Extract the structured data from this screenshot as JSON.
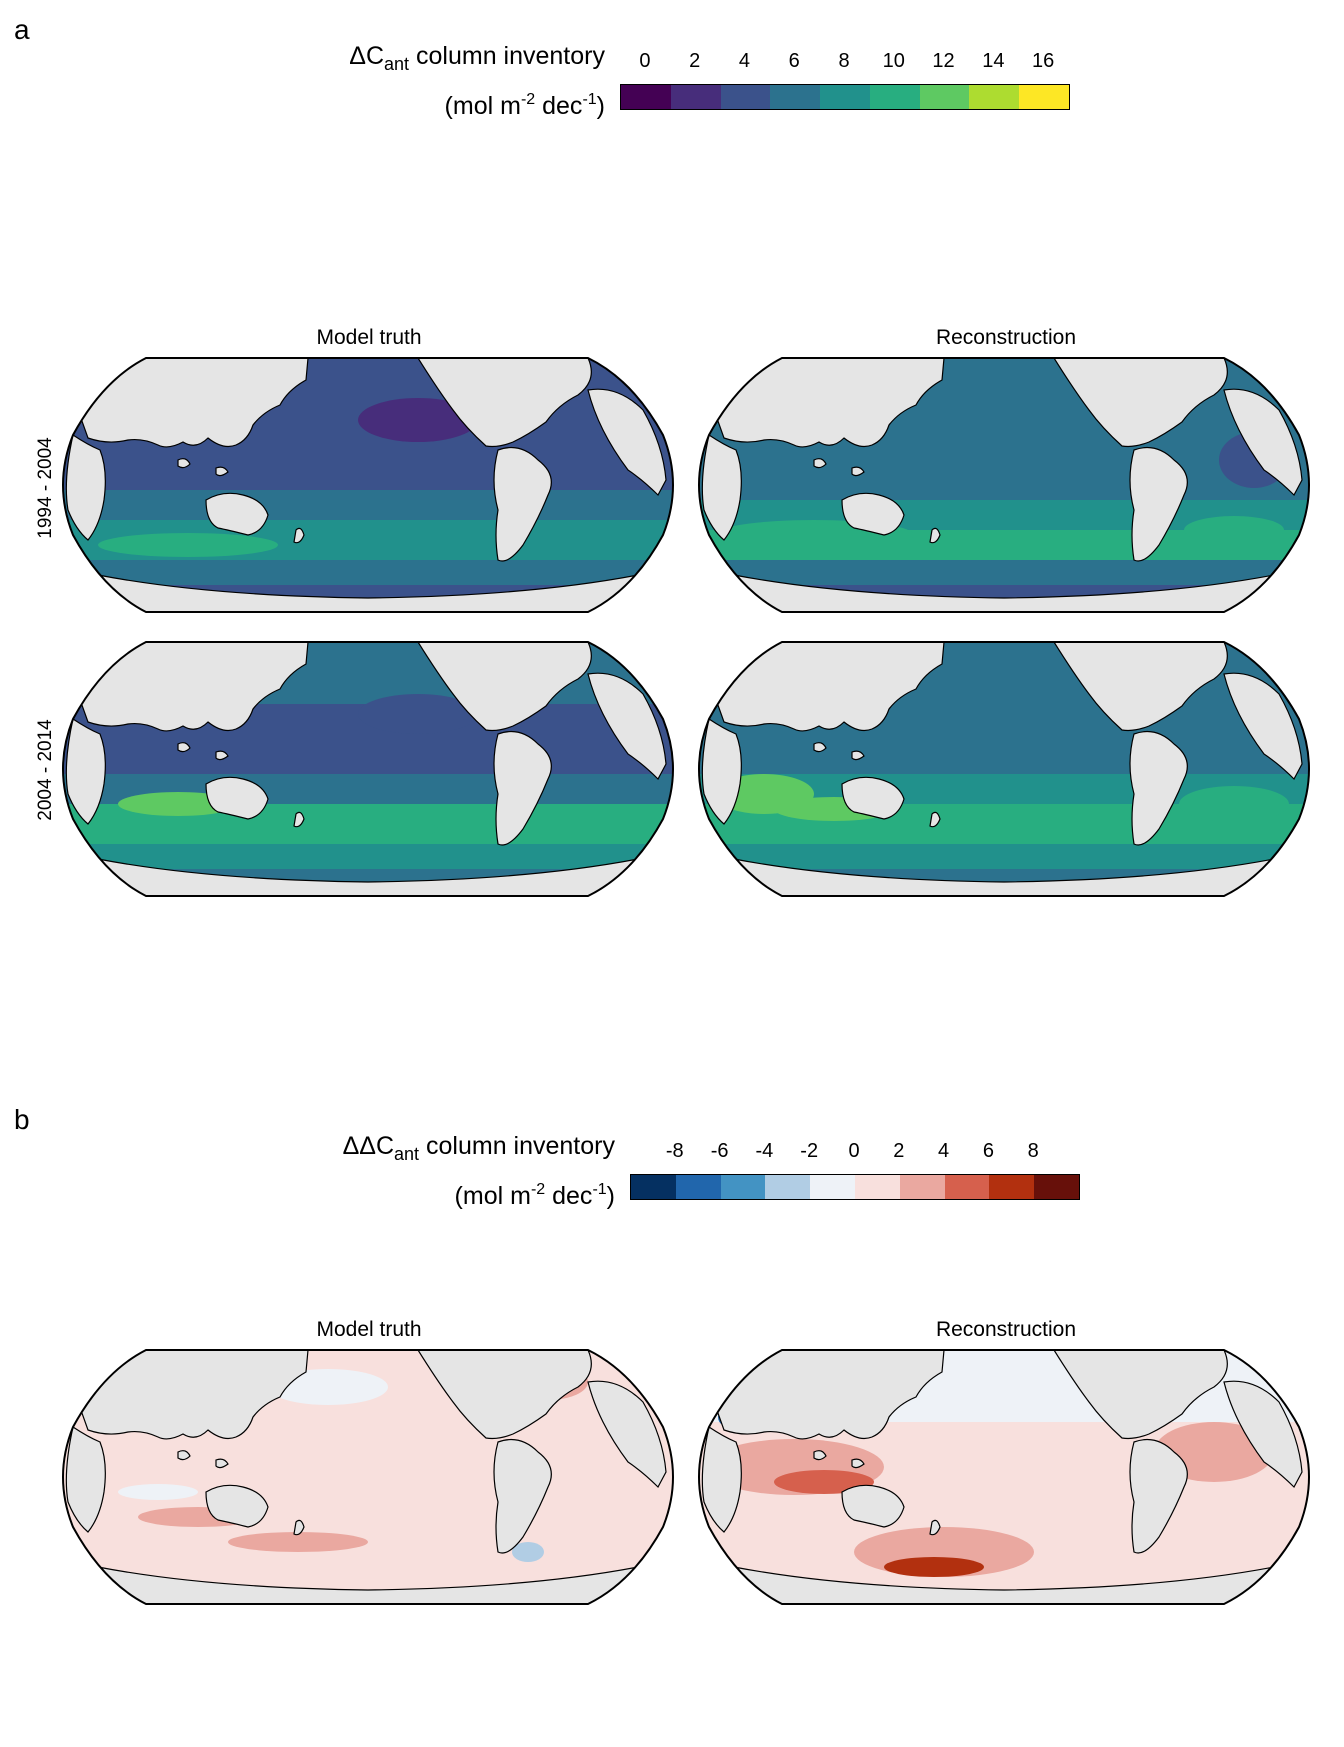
{
  "panel_a": {
    "letter": "a",
    "colorbar": {
      "delta": "ΔC",
      "sub": "ant",
      "rest": " column inventory",
      "units_pre": "(mol m",
      "units_exp1": "-2",
      "units_mid": " dec",
      "units_exp2": "-1",
      "units_post": ")",
      "ticks": [
        "0",
        "2",
        "4",
        "6",
        "8",
        "10",
        "12",
        "14",
        "16"
      ],
      "colors": [
        "#440154",
        "#472d7b",
        "#3b528b",
        "#2c728e",
        "#21918c",
        "#28ae80",
        "#5ec962",
        "#addc30",
        "#fde725"
      ]
    },
    "col_titles": [
      "Model truth",
      "Reconstruction"
    ],
    "row_labels": [
      "1994 - 2004",
      "2004 - 2014"
    ]
  },
  "panel_b": {
    "letter": "b",
    "colorbar": {
      "delta": "ΔΔC",
      "sub": "ant",
      "rest": " column inventory",
      "units_pre": "(mol m",
      "units_exp1": "-2",
      "units_mid": " dec",
      "units_exp2": "-1",
      "units_post": ")",
      "ticks": [
        "-8",
        "-6",
        "-4",
        "-2",
        "0",
        "2",
        "4",
        "6",
        "8"
      ],
      "colors": [
        "#053061",
        "#2166ac",
        "#4393c3",
        "#b1cde4",
        "#eef2f7",
        "#f8e0dd",
        "#eaa8a0",
        "#d6604d",
        "#b2300f",
        "#67100a"
      ]
    },
    "col_titles": [
      "Model truth",
      "Reconstruction"
    ]
  },
  "colors": {
    "land": "#e5e5e5",
    "coast": "#000000"
  }
}
